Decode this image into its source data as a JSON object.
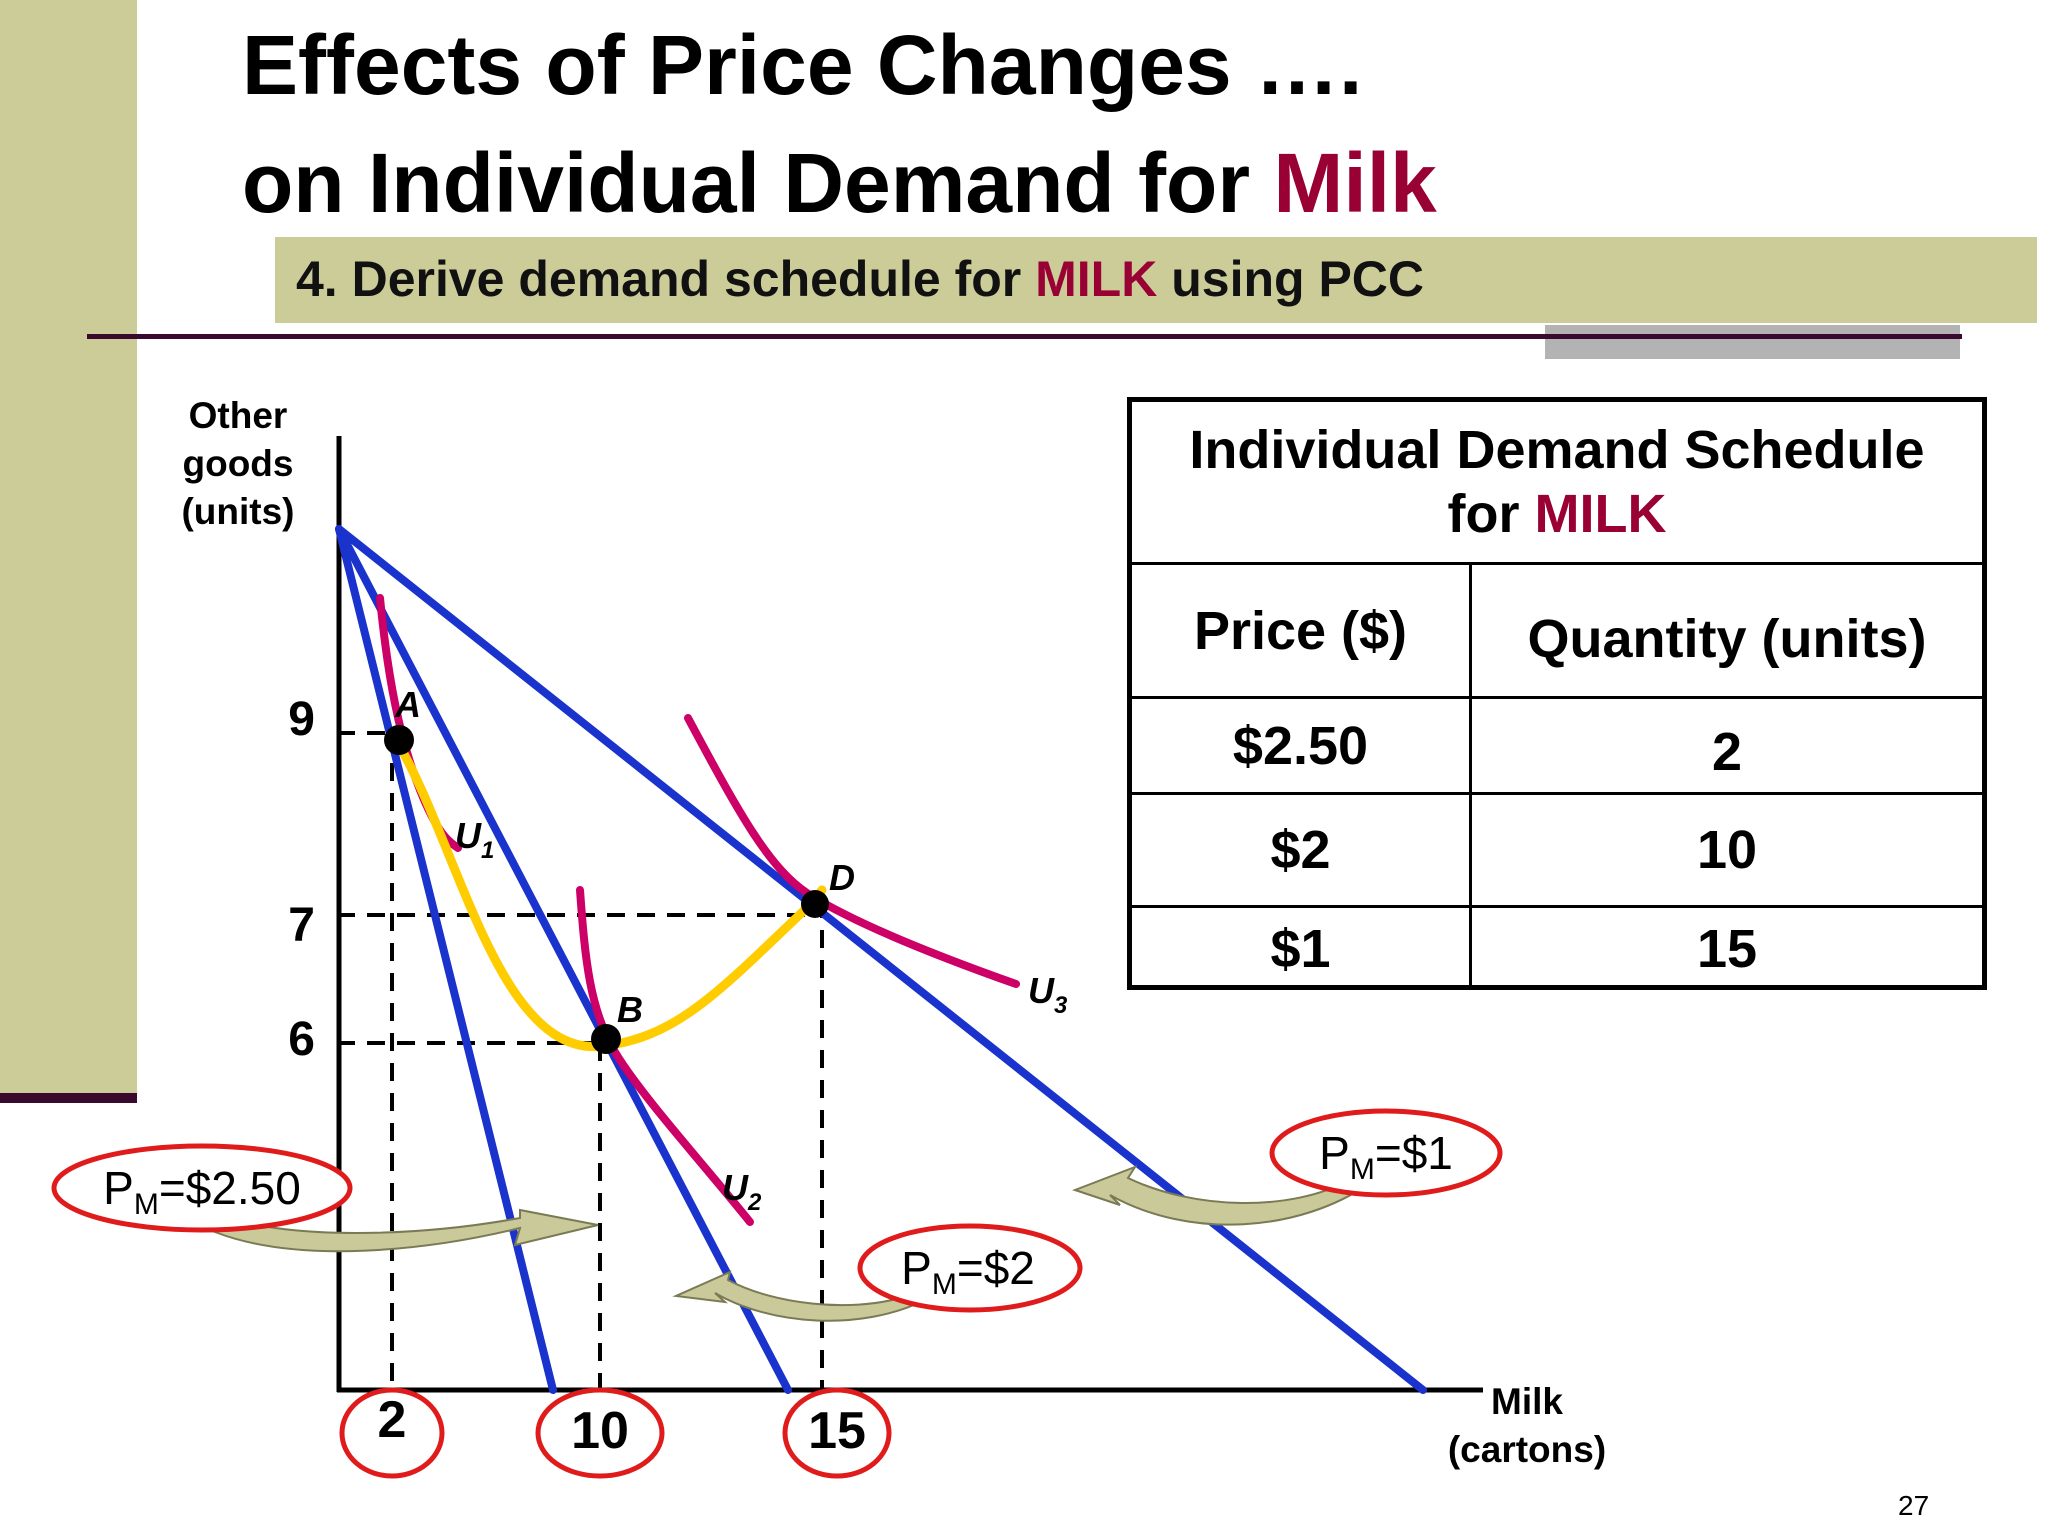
{
  "slide": {
    "title_line1": "Effects of Price Changes ….",
    "title_line2_prefix": "on Individual Demand for ",
    "title_line2_accent": "Milk",
    "subtitle_prefix": "4. Derive demand schedule for ",
    "subtitle_accent": "MILK",
    "subtitle_suffix": " using PCC",
    "page_number": "27"
  },
  "diagram": {
    "y_axis_title_lines": [
      "Other",
      "goods",
      "(units)"
    ],
    "x_axis_title_lines": [
      "Milk",
      "(cartons)"
    ],
    "y_ticks": [
      "9",
      "7",
      "6"
    ],
    "x_ticks": [
      "2",
      "10",
      "15"
    ],
    "points": [
      "A",
      "B",
      "D"
    ],
    "curves": [
      {
        "letter": "U",
        "subscript": "1"
      },
      {
        "letter": "U",
        "subscript": "2"
      },
      {
        "letter": "U",
        "subscript": "3"
      }
    ],
    "price_labels": [
      {
        "p": "P",
        "sub": "M",
        "value": "=$2.50"
      },
      {
        "p": "P",
        "sub": "M",
        "value": "=$2"
      },
      {
        "p": "P",
        "sub": "M",
        "value": "=$1"
      }
    ],
    "colors": {
      "budget_line": "#1a33cc",
      "indifference_curve": "#cc0066",
      "pcc_curve": "#ffcc00",
      "highlight_circle": "#e01b1b",
      "arrow_fill": "#c9c99a",
      "accent_text": "#990033"
    }
  },
  "table": {
    "title_line1": "Individual Demand Schedule",
    "title_line2_prefix": "for ",
    "title_line2_accent": "MILK",
    "headers": [
      "Price ($)",
      "Quantity (units)"
    ],
    "rows": [
      {
        "price": "$2.50",
        "quantity": "2"
      },
      {
        "price": "$2",
        "quantity": "10"
      },
      {
        "price": "$1",
        "quantity": "15"
      }
    ]
  }
}
